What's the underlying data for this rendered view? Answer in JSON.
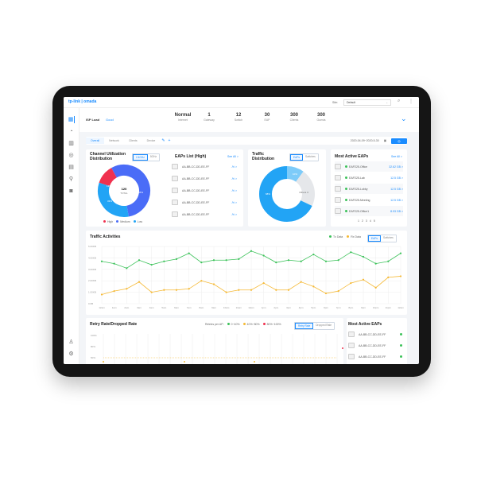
{
  "header": {
    "logo": "tp-link | omada",
    "site_label": "Site:",
    "site_value": "Default",
    "icons": [
      "search-icon",
      "more-icon"
    ]
  },
  "sidebar": {
    "icons": [
      "dashboard-icon",
      "statistics-icon",
      "map-icon",
      "devices-icon",
      "clients-icon",
      "location-icon",
      "camera-icon",
      "account-icon",
      "settings-icon"
    ]
  },
  "summary": {
    "isp_label": "ISP Load",
    "isp_status": "Good",
    "stats": [
      {
        "value": "Normal",
        "label": "Internet"
      },
      {
        "value": "1",
        "label": "Gateway"
      },
      {
        "value": "12",
        "label": "Switch"
      },
      {
        "value": "30",
        "label": "EAP"
      },
      {
        "value": "300",
        "label": "Clients"
      },
      {
        "value": "300",
        "label": "Guests"
      }
    ]
  },
  "tabs": {
    "items": [
      "Overall",
      "Network",
      "Clients",
      "Device"
    ],
    "active": "Overall",
    "date_range": "2020-04-09~2020-5-30"
  },
  "channel": {
    "title": "Channel Utilization Distribution",
    "bands": [
      "2.4GHz",
      "5GHz"
    ],
    "total": "120",
    "total_label": "TOTAL",
    "legend": [
      "High",
      "Medium",
      "Low"
    ],
    "slices": [
      {
        "name": "High",
        "percent": 12,
        "color": "#f0314f"
      },
      {
        "name": "Medium",
        "percent": 55,
        "color": "#4a6cf7"
      },
      {
        "name": "Low",
        "percent": 33,
        "color": "#22a4f5"
      }
    ],
    "slice_labels": [
      "12%",
      "55%",
      "33%"
    ]
  },
  "eaps_high": {
    "title": "EAPs List (High)",
    "see_all": "See All >",
    "items": [
      {
        "mac": "AA-BB-CC-DD-EE-FF",
        "value": "-% >"
      },
      {
        "mac": "AA-BB-CC-DD-EE-FF",
        "value": "-% >"
      },
      {
        "mac": "AA-BB-CC-DD-EE-FF",
        "value": "-% >"
      },
      {
        "mac": "AA-BB-CC-DD-EE-FF",
        "value": "-% >"
      },
      {
        "mac": "AA-BB-CC-DD-EE-FF",
        "value": "-% >"
      }
    ]
  },
  "traffic_dist": {
    "title": "Traffic Distribution",
    "toggle": [
      "EAPs",
      "Switches"
    ],
    "slices": [
      {
        "percent": 10,
        "color": "#7dcbf9"
      },
      {
        "percent": 22,
        "color": "#e5e7ea"
      },
      {
        "percent": 68,
        "color": "#22a4f5"
      }
    ],
    "labels": [
      "10%",
      "Others 3",
      "68%"
    ]
  },
  "most_active": {
    "title": "Most Active EAPs",
    "see_all": "See All >",
    "items": [
      {
        "name": "EAP225-Office",
        "value": "32.62 GB >"
      },
      {
        "name": "EAP225-Lab",
        "value": "12.5 GB >"
      },
      {
        "name": "EAP225-Lobby",
        "value": "12.5 GB >"
      },
      {
        "name": "EAP225-Meeting",
        "value": "12.5 GB >"
      },
      {
        "name": "EAP225-Office1",
        "value": "8.93 GB >"
      }
    ],
    "pages": [
      "1",
      "2",
      "3",
      "4",
      "5"
    ],
    "status_color": "#3cc25a"
  },
  "chart_data": {
    "type": "line",
    "title": "Traffic Activities",
    "legend": [
      "Tx Data",
      "Rx Data"
    ],
    "toggle": [
      "EAPs",
      "Switches"
    ],
    "yticks": [
      "0.0B",
      "1.00KB",
      "2.00KB",
      "3.00KB",
      "4.00KB",
      "5.00KB"
    ],
    "ylim": [
      0,
      5
    ],
    "xticks": [
      "12am",
      "1am",
      "2am",
      "3am",
      "4am",
      "5am",
      "6am",
      "7am",
      "8am",
      "9am",
      "10am",
      "11am",
      "12pm",
      "1pm",
      "2pm",
      "3pm",
      "4pm",
      "5pm",
      "6pm",
      "7pm",
      "8pm",
      "9pm",
      "10pm",
      "11pm",
      "12am"
    ],
    "series": [
      {
        "name": "Tx Data",
        "color": "#3cc25a",
        "values": [
          3.7,
          3.5,
          3.1,
          3.8,
          3.4,
          3.7,
          3.9,
          4.4,
          3.6,
          3.8,
          3.8,
          3.9,
          4.6,
          4.2,
          3.6,
          3.8,
          3.7,
          4.3,
          3.7,
          3.8,
          4.5,
          4.1,
          3.5,
          3.7,
          4.4
        ]
      },
      {
        "name": "Rx Data",
        "color": "#f5b935",
        "values": [
          0.8,
          1.1,
          1.3,
          1.9,
          1.0,
          1.2,
          1.2,
          1.3,
          2.0,
          1.7,
          1.0,
          1.2,
          1.2,
          1.8,
          1.2,
          1.2,
          1.9,
          1.5,
          0.9,
          1.1,
          1.8,
          2.1,
          1.4,
          2.3,
          2.4
        ]
      }
    ]
  },
  "retry": {
    "title": "Retry Rate/Dropped Rate",
    "legend_label": "Retries per AP:",
    "legend": [
      {
        "label": "0~40%",
        "color": "#3cc25a"
      },
      {
        "label": "40%~80%",
        "color": "#f5b935"
      },
      {
        "label": "80%~100%",
        "color": "#f0314f"
      }
    ],
    "toggle": [
      "Retry Rate",
      "Dropped Rate"
    ],
    "yticks": [
      "100%",
      "80%",
      "50%"
    ]
  },
  "most_active_2": {
    "title": "Most Active EAPs",
    "items": [
      "AA-BB-CC-DD-EE-FF",
      "AA-BB-CC-DD-EE-FF",
      "AA-BB-CC-DD-EE-FF"
    ]
  }
}
